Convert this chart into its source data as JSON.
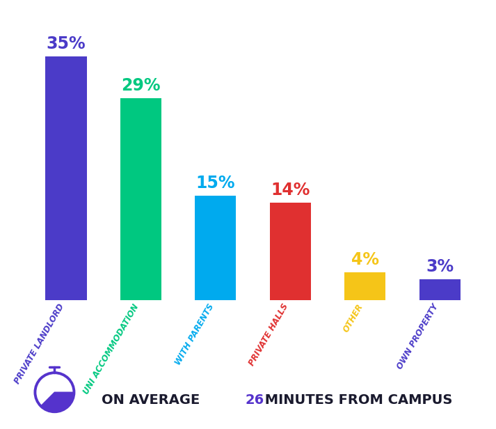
{
  "categories": [
    "PRIVATE LANDLORD",
    "UNI ACCOMMODATION",
    "WITH PARENTS",
    "PRIVATE HALLS",
    "OTHER",
    "OWN PROPERTY"
  ],
  "values": [
    35,
    29,
    15,
    14,
    4,
    3
  ],
  "bar_colors": [
    "#4B3BC8",
    "#00C880",
    "#00AAEE",
    "#E03030",
    "#F5C518",
    "#4B3BC8"
  ],
  "label_colors": [
    "#4B3BC8",
    "#00C880",
    "#00AAEE",
    "#E03030",
    "#F5C518",
    "#4B3BC8"
  ],
  "tick_label_colors": [
    "#4B3BC8",
    "#00C880",
    "#00AAEE",
    "#E03030",
    "#F5C518",
    "#4B3BC8"
  ],
  "background_color": "#FFFFFF",
  "footer_text_pre": "ON AVERAGE ",
  "footer_number": "26",
  "footer_text_post": " MINUTES FROM CAMPUS",
  "footer_main_color": "#1a1a2e",
  "footer_number_color": "#5533CC",
  "stopwatch_color": "#5533CC",
  "bar_width": 0.55,
  "ylim": [
    0,
    40
  ],
  "label_fontsize": 17,
  "tick_fontsize": 8.5
}
